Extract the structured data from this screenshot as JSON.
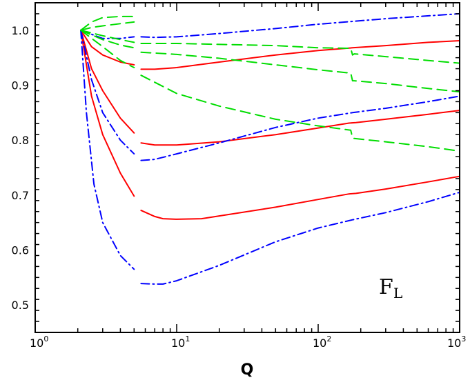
{
  "chart_data": {
    "type": "line",
    "title": "",
    "xlabel": "Q",
    "ylabel": "",
    "x_scale": "log",
    "xlim": [
      1,
      1000
    ],
    "ylim": [
      0.45,
      1.05
    ],
    "x_ticks": [
      {
        "base": "10",
        "exp": "0",
        "value": 1
      },
      {
        "base": "10",
        "exp": "1",
        "value": 10
      },
      {
        "base": "10",
        "exp": "2",
        "value": 100
      },
      {
        "base": "10",
        "exp": "3",
        "value": 1000
      }
    ],
    "y_ticks": [
      "0.5",
      "0.6",
      "0.7",
      "0.8",
      "0.9",
      "1.0"
    ],
    "annotation": {
      "main": "F",
      "sub": "L"
    },
    "grid": false,
    "legend": "none",
    "series": [
      {
        "color": "#ff0000",
        "dash": "solid",
        "segments": [
          [
            [
              2.1,
              1.0
            ],
            [
              2.5,
              0.97
            ],
            [
              3.0,
              0.955
            ],
            [
              4.0,
              0.942
            ],
            [
              5.0,
              0.937
            ]
          ],
          [
            [
              5.6,
              0.929
            ],
            [
              7,
              0.929
            ],
            [
              10,
              0.932
            ],
            [
              20,
              0.942
            ],
            [
              50,
              0.955
            ],
            [
              100,
              0.963
            ],
            [
              175,
              0.968
            ],
            [
              300,
              0.972
            ],
            [
              600,
              0.978
            ],
            [
              1000,
              0.981
            ]
          ]
        ]
      },
      {
        "color": "#ff0000",
        "dash": "solid",
        "segments": [
          [
            [
              2.1,
              1.0
            ],
            [
              2.5,
              0.93
            ],
            [
              3.0,
              0.89
            ],
            [
              4.0,
              0.84
            ],
            [
              5.0,
              0.813
            ]
          ],
          [
            [
              5.6,
              0.795
            ],
            [
              7,
              0.791
            ],
            [
              10,
              0.791
            ],
            [
              20,
              0.797
            ],
            [
              50,
              0.81
            ],
            [
              100,
              0.822
            ],
            [
              165,
              0.831
            ],
            [
              185,
              0.832
            ],
            [
              300,
              0.838
            ],
            [
              600,
              0.847
            ],
            [
              1000,
              0.854
            ]
          ]
        ]
      },
      {
        "color": "#ff0000",
        "dash": "solid",
        "segments": [
          [
            [
              2.1,
              1.0
            ],
            [
              2.5,
              0.88
            ],
            [
              3.0,
              0.81
            ],
            [
              4.0,
              0.74
            ],
            [
              5.0,
              0.698
            ]
          ],
          [
            [
              5.6,
              0.672
            ],
            [
              7,
              0.661
            ],
            [
              8,
              0.657
            ],
            [
              10,
              0.656
            ],
            [
              15,
              0.657
            ],
            [
              20,
              0.662
            ],
            [
              50,
              0.678
            ],
            [
              100,
              0.692
            ],
            [
              165,
              0.702
            ],
            [
              185,
              0.703
            ],
            [
              300,
              0.711
            ],
            [
              600,
              0.724
            ],
            [
              1000,
              0.734
            ]
          ]
        ]
      },
      {
        "color": "#0000ff",
        "dash": "dashdot",
        "segments": [
          [
            [
              2.1,
              1.0
            ],
            [
              3.0,
              0.985
            ],
            [
              4.0,
              0.985
            ],
            [
              5.0,
              0.988
            ]
          ],
          [
            [
              5.6,
              0.988
            ],
            [
              7,
              0.987
            ],
            [
              10,
              0.988
            ],
            [
              20,
              0.994
            ],
            [
              50,
              1.003
            ],
            [
              100,
              1.011
            ],
            [
              300,
              1.021
            ],
            [
              1000,
              1.03
            ]
          ]
        ]
      },
      {
        "color": "#0000ff",
        "dash": "dashdot",
        "segments": [
          [
            [
              2.1,
              1.0
            ],
            [
              2.5,
              0.91
            ],
            [
              3.0,
              0.85
            ],
            [
              4.0,
              0.8
            ],
            [
              5.0,
              0.775
            ]
          ],
          [
            [
              5.6,
              0.763
            ],
            [
              7,
              0.765
            ],
            [
              10,
              0.775
            ],
            [
              20,
              0.795
            ],
            [
              50,
              0.823
            ],
            [
              100,
              0.84
            ],
            [
              175,
              0.85
            ],
            [
              300,
              0.858
            ],
            [
              600,
              0.87
            ],
            [
              1000,
              0.88
            ]
          ]
        ]
      },
      {
        "color": "#0000ff",
        "dash": "dashdot",
        "segments": [
          [
            [
              2.1,
              1.0
            ],
            [
              2.3,
              0.85
            ],
            [
              2.6,
              0.72
            ],
            [
              3.0,
              0.65
            ],
            [
              4.0,
              0.59
            ],
            [
              5.0,
              0.565
            ]
          ],
          [
            [
              5.6,
              0.539
            ],
            [
              7,
              0.538
            ],
            [
              8,
              0.538
            ],
            [
              10,
              0.544
            ],
            [
              20,
              0.572
            ],
            [
              50,
              0.615
            ],
            [
              100,
              0.64
            ],
            [
              175,
              0.655
            ],
            [
              300,
              0.668
            ],
            [
              600,
              0.688
            ],
            [
              1000,
              0.705
            ]
          ]
        ]
      },
      {
        "color": "#00dd00",
        "dash": "dashed",
        "segments": [
          [
            [
              2.1,
              1.0
            ],
            [
              2.5,
              1.015
            ],
            [
              3.0,
              1.023
            ],
            [
              4.0,
              1.025
            ],
            [
              5.0,
              1.025
            ]
          ]
        ]
      },
      {
        "color": "#00dd00",
        "dash": "dashed",
        "segments": [
          [
            [
              2.1,
              1.0
            ],
            [
              2.5,
              1.005
            ],
            [
              3.0,
              1.008
            ],
            [
              4.0,
              1.012
            ],
            [
              5.0,
              1.015
            ]
          ]
        ]
      },
      {
        "color": "#00dd00",
        "dash": "dashed",
        "segments": [
          [
            [
              2.1,
              1.0
            ],
            [
              3.0,
              0.99
            ],
            [
              4.0,
              0.983
            ],
            [
              5.0,
              0.978
            ]
          ],
          [
            [
              5.6,
              0.976
            ],
            [
              10,
              0.976
            ],
            [
              50,
              0.972
            ],
            [
              100,
              0.968
            ],
            [
              170,
              0.967
            ],
            [
              175,
              0.955
            ],
            [
              180,
              0.957
            ],
            [
              300,
              0.952
            ],
            [
              600,
              0.945
            ],
            [
              1000,
              0.94
            ]
          ]
        ]
      },
      {
        "color": "#00dd00",
        "dash": "dashed",
        "segments": [
          [
            [
              2.1,
              1.0
            ],
            [
              3.0,
              0.983
            ],
            [
              4.0,
              0.973
            ],
            [
              5.0,
              0.968
            ]
          ],
          [
            [
              5.6,
              0.96
            ],
            [
              10,
              0.956
            ],
            [
              20,
              0.949
            ],
            [
              50,
              0.937
            ],
            [
              100,
              0.928
            ],
            [
              170,
              0.922
            ],
            [
              175,
              0.908
            ],
            [
              180,
              0.908
            ],
            [
              300,
              0.903
            ],
            [
              600,
              0.894
            ],
            [
              1000,
              0.888
            ]
          ]
        ]
      },
      {
        "color": "#00dd00",
        "dash": "dashed",
        "segments": [
          [
            [
              2.1,
              1.0
            ],
            [
              3.0,
              0.97
            ],
            [
              4.0,
              0.945
            ],
            [
              5.0,
              0.932
            ]
          ],
          [
            [
              5.6,
              0.918
            ],
            [
              10,
              0.885
            ],
            [
              20,
              0.862
            ],
            [
              50,
              0.838
            ],
            [
              100,
              0.826
            ],
            [
              170,
              0.818
            ],
            [
              175,
              0.804
            ],
            [
              180,
              0.803
            ],
            [
              300,
              0.797
            ],
            [
              600,
              0.788
            ],
            [
              1000,
              0.78
            ]
          ]
        ]
      }
    ]
  }
}
